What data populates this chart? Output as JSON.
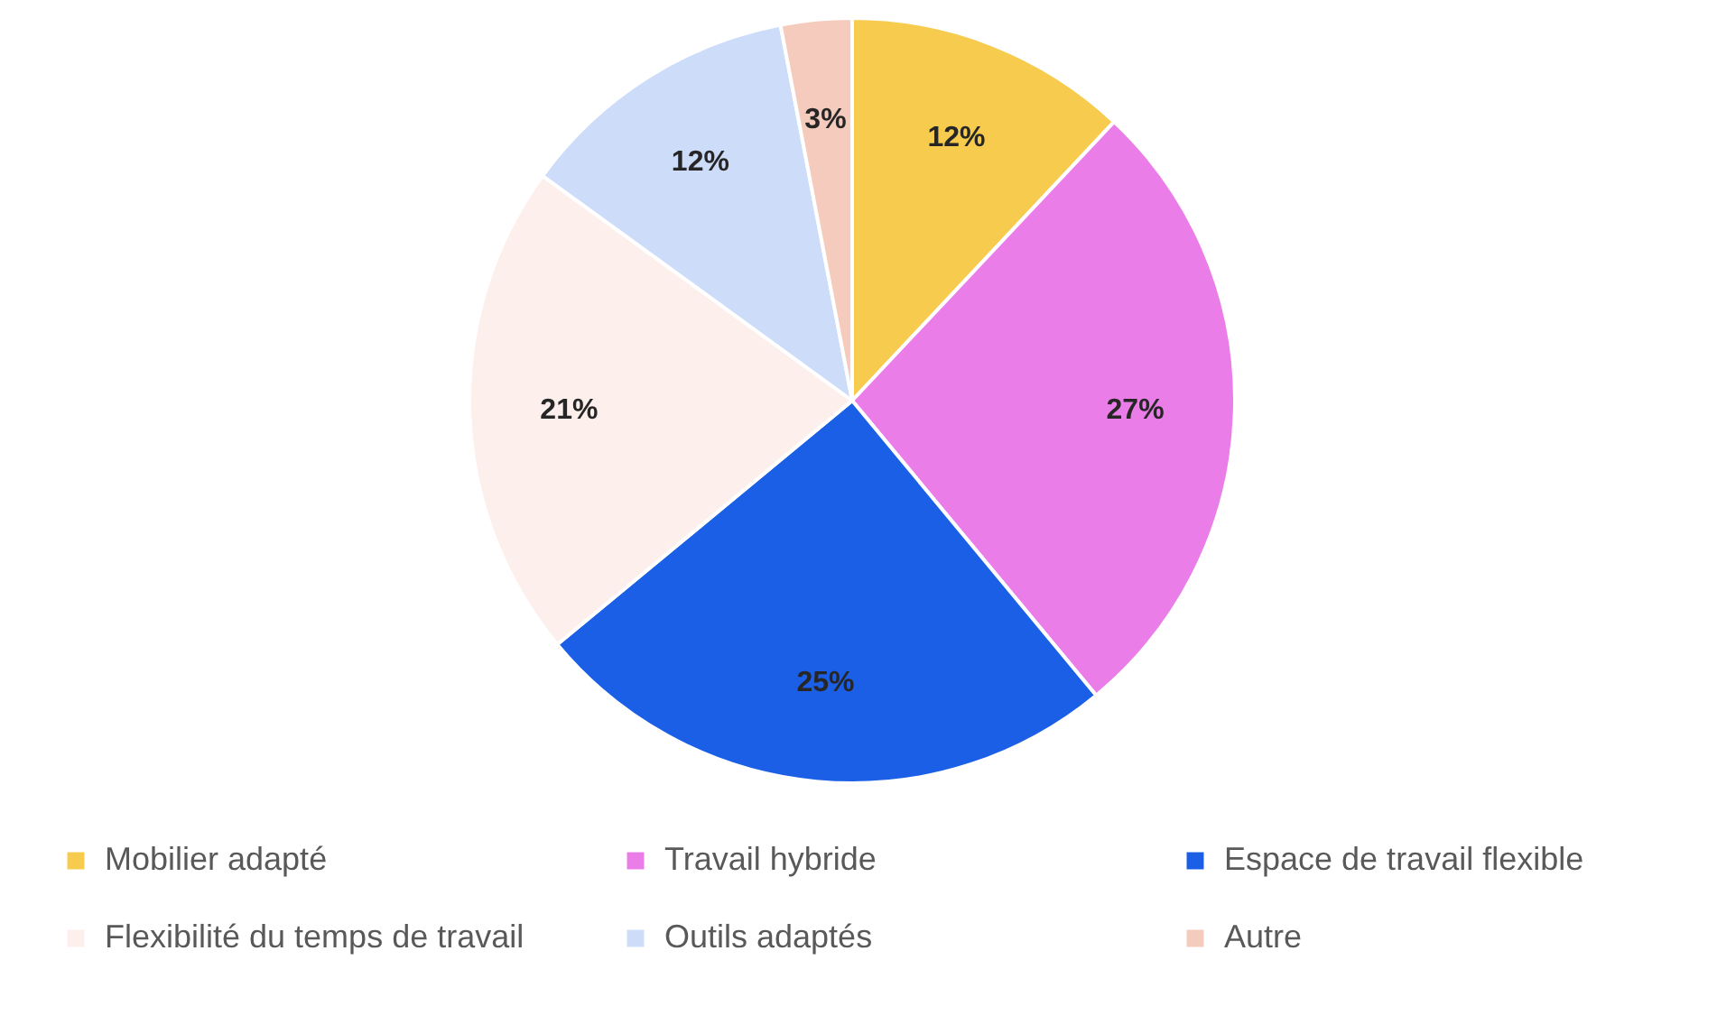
{
  "chart_data": {
    "type": "pie",
    "categories": [
      "Mobilier adapté",
      "Travail hybride",
      "Espace de travail flexible",
      "Flexibilité du temps de travail",
      "Outils adaptés",
      "Autre"
    ],
    "values": [
      12,
      27,
      25,
      21,
      12,
      3
    ],
    "colors": [
      "#f7cb4d",
      "#eb7de8",
      "#1b5fe6",
      "#fcefec",
      "#cdddf9",
      "#f5cbbd"
    ],
    "value_labels": [
      "12%",
      "27%",
      "25%",
      "21%",
      "12%",
      "3%"
    ],
    "legend": "bottom"
  }
}
